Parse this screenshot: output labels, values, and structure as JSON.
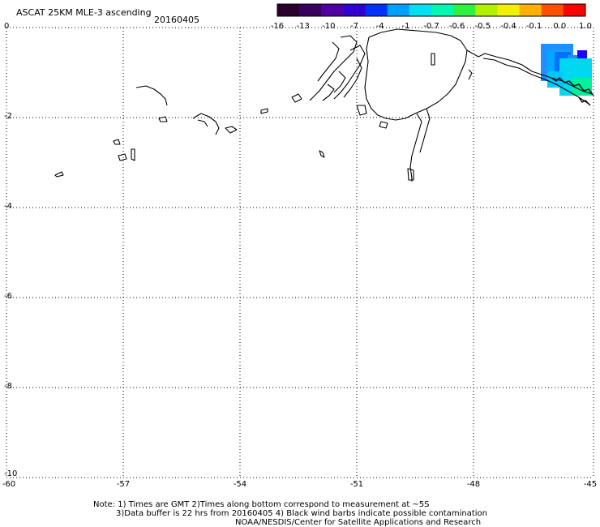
{
  "title": "ASCAT 25KM MLE-3 ascending",
  "date": "20160405",
  "colorbar": {
    "labels": [
      "-16",
      "-13",
      "-10",
      "-7",
      "-4",
      "-1",
      "-0.7",
      "-0.6",
      "-0.5",
      "-0.4",
      "-0.1",
      "0.0",
      "1.0"
    ],
    "colors": [
      "#2a002a",
      "#3a0060",
      "#5000a0",
      "#3000d0",
      "#0030ff",
      "#00a0ff",
      "#00e0f0",
      "#00f8b0",
      "#30f040",
      "#b0f000",
      "#f0f000",
      "#ffb000",
      "#ff5000",
      "#ff0000"
    ]
  },
  "map": {
    "y_ticks": [
      "0",
      "-2",
      "-4",
      "-6",
      "-8",
      "-10"
    ],
    "x_ticks": [
      "-60",
      "-57",
      "-54",
      "-51",
      "-48",
      "-45"
    ]
  },
  "notes": [
    "Note: 1) Times are GMT 2)Times along bottom correspond to measurement at ~5S",
    "3)Data buffer is 22 hrs from 20160405 4) Black wind barbs indicate possible contamination",
    "NOAA/NESDIS/Center for Satellite Applications and Research"
  ]
}
